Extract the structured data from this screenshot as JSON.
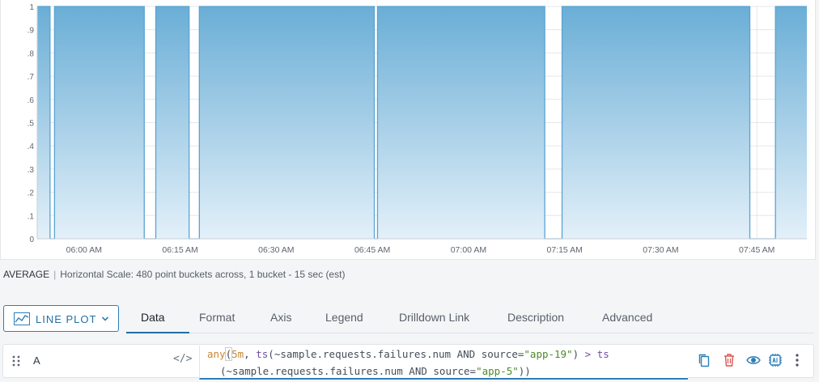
{
  "chart_data": {
    "type": "area",
    "y_ticks": [
      "1",
      ".9",
      ".8",
      ".7",
      ".6",
      ".5",
      ".4",
      ".3",
      ".2",
      ".1",
      "0"
    ],
    "x_ticks": [
      "06:00 AM",
      "06:15 AM",
      "06:30 AM",
      "06:45 AM",
      "07:00 AM",
      "07:15 AM",
      "07:30 AM",
      "07:45 AM"
    ],
    "x_tick_minutes": [
      0,
      15,
      30,
      45,
      60,
      75,
      90,
      105
    ],
    "x_domain_minutes": [
      -7.3,
      112.8
    ],
    "ylim": [
      0,
      1
    ],
    "grid": true,
    "fill_color_top": "#6aaed6",
    "fill_color_bottom": "#e3f0f9",
    "line_color": "#5aa3d2",
    "segments": [
      {
        "x": -7.3,
        "y": 1
      },
      {
        "x": -5.3,
        "y": 1
      },
      {
        "x": -5.3,
        "y": 0
      },
      {
        "x": -4.6,
        "y": 0
      },
      {
        "x": -4.6,
        "y": 1
      },
      {
        "x": 9.4,
        "y": 1
      },
      {
        "x": 9.4,
        "y": 0
      },
      {
        "x": 11.2,
        "y": 0
      },
      {
        "x": 11.2,
        "y": 1
      },
      {
        "x": 16.4,
        "y": 1
      },
      {
        "x": 16.4,
        "y": 0
      },
      {
        "x": 18.0,
        "y": 0
      },
      {
        "x": 18.0,
        "y": 1
      },
      {
        "x": 45.3,
        "y": 1
      },
      {
        "x": 45.3,
        "y": 0
      },
      {
        "x": 45.8,
        "y": 0
      },
      {
        "x": 45.8,
        "y": 1
      },
      {
        "x": 71.9,
        "y": 1
      },
      {
        "x": 71.9,
        "y": 0
      },
      {
        "x": 74.6,
        "y": 0
      },
      {
        "x": 74.6,
        "y": 1
      },
      {
        "x": 103.9,
        "y": 1
      },
      {
        "x": 103.9,
        "y": 0
      },
      {
        "x": 107.9,
        "y": 0
      },
      {
        "x": 107.9,
        "y": 1
      },
      {
        "x": 112.8,
        "y": 1
      }
    ]
  },
  "summary": {
    "aggregation": "AVERAGE",
    "scale_text": "Horizontal Scale: 480 point buckets across, 1 bucket - 15 sec (est)"
  },
  "plot_type": {
    "label": "LINE PLOT",
    "icon": "line-chart-icon"
  },
  "tabs": [
    {
      "label": "Data",
      "active": true
    },
    {
      "label": "Format",
      "active": false
    },
    {
      "label": "Axis",
      "active": false
    },
    {
      "label": "Legend",
      "active": false
    },
    {
      "label": "Drilldown Link",
      "active": false
    },
    {
      "label": "Description",
      "active": false
    },
    {
      "label": "Advanced",
      "active": false
    }
  ],
  "query": {
    "name": "A",
    "code_toggle": "</>",
    "tokens_line1": [
      {
        "t": "any",
        "c": "func"
      },
      {
        "t": "(",
        "c": "bracket"
      },
      {
        "t": "5m",
        "c": "num"
      },
      {
        "t": ", ",
        "c": "plain"
      },
      {
        "t": "ts",
        "c": "ts"
      },
      {
        "t": "(~sample.requests.failures.num ",
        "c": "plain"
      },
      {
        "t": "AND",
        "c": "key"
      },
      {
        "t": " source=",
        "c": "plain"
      },
      {
        "t": "\"app-19\"",
        "c": "str"
      },
      {
        "t": ") ",
        "c": "plain"
      },
      {
        "t": ">",
        "c": "op"
      },
      {
        "t": " ",
        "c": "plain"
      },
      {
        "t": "ts",
        "c": "ts"
      }
    ],
    "tokens_line2": [
      {
        "t": "(~sample.requests.failures.num ",
        "c": "plain"
      },
      {
        "t": "AND",
        "c": "key"
      },
      {
        "t": " source=",
        "c": "plain"
      },
      {
        "t": "\"app-5\"",
        "c": "str"
      },
      {
        "t": "))",
        "c": "plain"
      }
    ]
  },
  "row_actions": [
    {
      "icon": "copy-icon",
      "color": "#2d7eb8"
    },
    {
      "icon": "trash-icon",
      "color": "#d9534f"
    },
    {
      "icon": "eye-icon",
      "color": "#2d7eb8"
    },
    {
      "icon": "ai-chip-icon",
      "color": "#2d7eb8"
    },
    {
      "icon": "more-vertical-icon",
      "color": "#4a525c"
    }
  ]
}
